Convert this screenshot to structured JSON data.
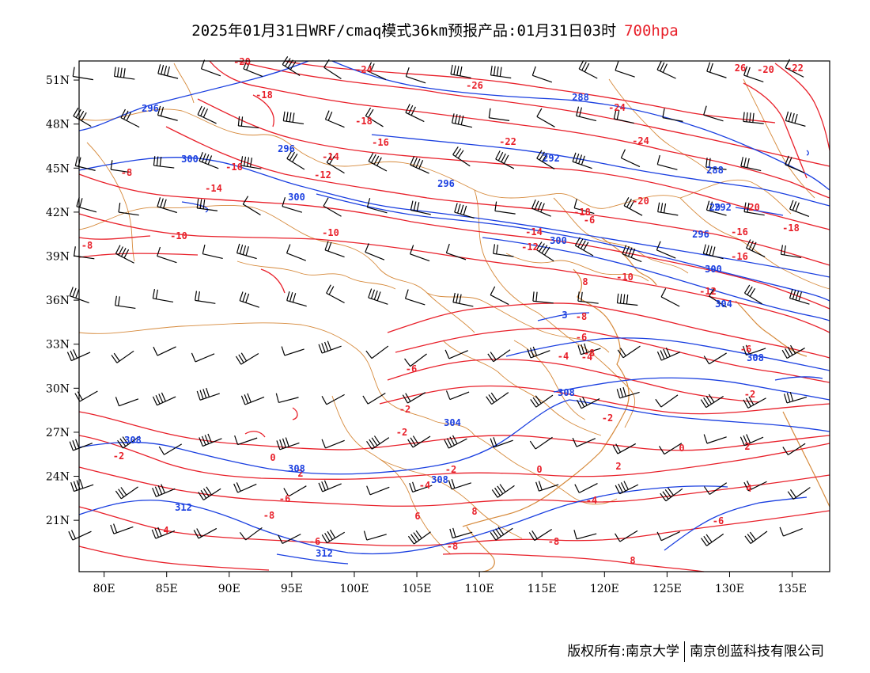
{
  "title": {
    "main": "2025年01月31日WRF/cmaq模式36km预报产品:01月31日03时",
    "level": "700hpa"
  },
  "colors": {
    "temperature": "#e8202a",
    "geopotential": "#1a3fe0",
    "border": "#d68a3c",
    "wind": "#000000"
  },
  "axes": {
    "x_labels": [
      "80E",
      "85E",
      "90E",
      "95E",
      "100E",
      "105E",
      "110E",
      "115E",
      "120E",
      "125E",
      "130E",
      "135E"
    ],
    "y_labels": [
      "51N",
      "48N",
      "45N",
      "42N",
      "39N",
      "36N",
      "33N",
      "30N",
      "27N",
      "24N",
      "21N"
    ]
  },
  "temperature_labels": [
    "-20",
    "-24",
    "-26",
    "-18",
    "-18",
    "-16",
    "-14",
    "-16",
    "-12",
    "-14",
    "-10",
    "-10",
    "-8",
    "-22",
    "-24",
    "-24",
    "-20",
    "-18",
    "-16",
    "-14",
    "-12",
    "-16",
    "-12",
    "-22",
    "-18",
    "-20",
    "-10",
    "-8",
    "-6",
    "-6",
    "-6",
    "-4",
    "-4",
    "-2",
    "-2",
    "-2",
    "0",
    "-2",
    "0",
    "2",
    "2",
    "-4",
    "4",
    "-4",
    "-6",
    "4",
    "-6",
    "-8",
    "-6",
    "-8",
    "-8",
    "-8",
    "-2",
    "-6",
    "-8",
    "-2",
    "2",
    "0",
    "6",
    "8",
    "8",
    "8",
    "26",
    "-20"
  ],
  "geopotential_labels": [
    "296",
    "300",
    "296",
    "300",
    "296",
    "292",
    "288",
    "288",
    "292",
    "296",
    "300",
    "304",
    "308",
    "308",
    "308",
    "304",
    "308",
    "312",
    "312",
    "308",
    "300",
    "3",
    "29"
  ],
  "footer": {
    "copyright": "版权所有:南京大学",
    "company": "南京创蓝科技有限公司"
  }
}
